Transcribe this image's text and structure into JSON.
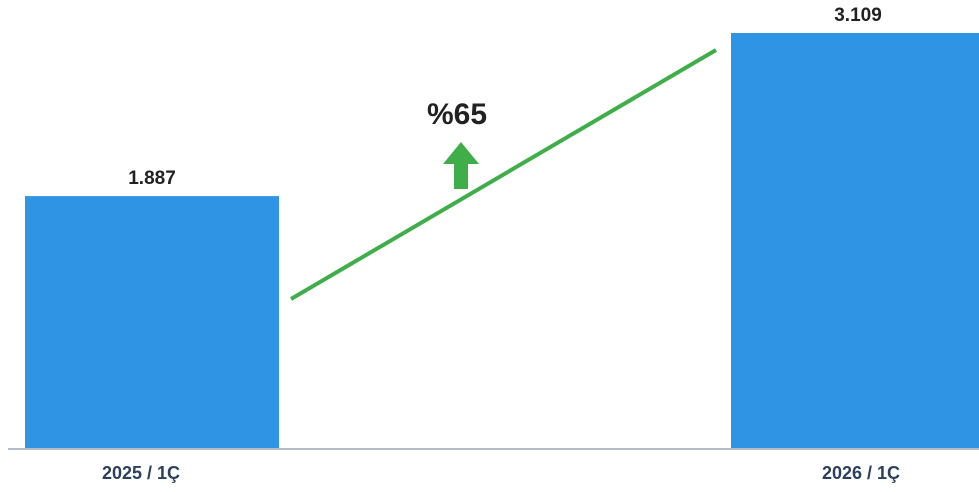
{
  "chart_data": {
    "type": "bar",
    "categories": [
      "2025 / 1Ç",
      "2026 / 1Ç"
    ],
    "values": [
      1887,
      3109
    ],
    "value_labels": [
      "1.887",
      "3.109"
    ],
    "title": "",
    "xlabel": "",
    "ylabel": "",
    "ylim": [
      0,
      3109
    ],
    "grid": false,
    "legend": "none",
    "annotation": {
      "text": "%65",
      "direction": "up",
      "trend_line": true
    },
    "colors": {
      "bar": "#2f94e3",
      "trend": "#3fae49",
      "category_text": "#2b3f5e",
      "axis": "#9aa6b6"
    }
  }
}
